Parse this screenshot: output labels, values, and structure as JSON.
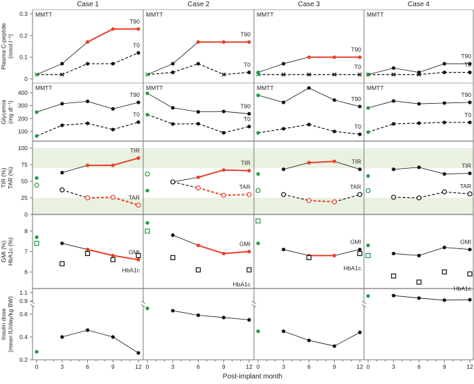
{
  "chart_data": {
    "type": "line",
    "xlabel": "Post-implant month",
    "xticks": [
      0,
      3,
      6,
      9,
      12
    ],
    "colors": {
      "baseline": "#1e9a3c",
      "highlight": "#e8412a",
      "default": "#111111",
      "band": "#e9f1e0"
    },
    "rows": [
      {
        "key": "cpeptide",
        "ylabel": [
          "Plasma C-peptide",
          "(nmol l⁻¹)"
        ],
        "yticks": [
          0,
          0.1,
          0.2,
          0.3
        ],
        "ytick_labels": [
          "0",
          "0.1",
          "0.2",
          "0.3"
        ],
        "panel_label": "MMTT",
        "connect_baseline": true
      },
      {
        "key": "glycemia",
        "ylabel": [
          "Glycemia",
          "(mg dl⁻¹)"
        ],
        "yticks": [
          100,
          200,
          300,
          400
        ],
        "ytick_labels": [
          "100",
          "200",
          "300",
          "400"
        ],
        "panel_label": "MMTT",
        "connect_baseline": true
      },
      {
        "key": "tir",
        "ylabel": [
          "TIR (%)",
          "TAR (%)"
        ],
        "yticks": [
          0,
          25,
          50,
          75,
          100
        ],
        "ytick_labels": [
          "0",
          "25",
          "50",
          "75",
          "100"
        ],
        "panel_label": "",
        "connect_baseline": false,
        "target_bands": [
          [
            70,
            100
          ],
          [
            0,
            25
          ]
        ]
      },
      {
        "key": "gmi",
        "ylabel": [
          "GMI (%)",
          "HbA1c (%)"
        ],
        "yticks": [
          6,
          7,
          8
        ],
        "ytick_labels": [
          "6",
          "7",
          "8"
        ],
        "panel_label": "",
        "connect_baseline": false
      },
      {
        "key": "insulin",
        "ylabel": [
          "Insulin dose",
          "(mean IU/day/kg BW)"
        ],
        "yticks": [
          0.2,
          0.4,
          0.6,
          0.9,
          1.1
        ],
        "ytick_labels": [
          "0.2",
          "0.4",
          "0.6",
          "0.9",
          "1.1"
        ],
        "panel_label": "",
        "connect_baseline": false,
        "axis_break": [
          0.6,
          0.9
        ]
      }
    ],
    "cases": [
      {
        "title": "Case 1",
        "rows": {
          "cpeptide": [
            {
              "name": "T90",
              "y": [
                0.02,
                0.07,
                0.17,
                0.23,
                0.23
              ],
              "markers": [
                "x",
                "dot",
                "dot",
                "dot",
                "dot"
              ],
              "dashed": false,
              "red_from": 2
            },
            {
              "name": "T0",
              "y": [
                0.02,
                0.02,
                0.07,
                0.07,
                0.12
              ],
              "markers": [
                "x",
                "x",
                "dot",
                "dot",
                "dot"
              ],
              "dashed": true,
              "red_from": null
            }
          ],
          "glycemia": [
            {
              "name": "T90",
              "y": [
                250,
                315,
                333,
                275,
                325
              ],
              "markers": [
                "dot",
                "dot",
                "dot",
                "dot",
                "dot"
              ],
              "dashed": false,
              "red_from": null
            },
            {
              "name": "T0",
              "y": [
                65,
                148,
                163,
                115,
                172
              ],
              "markers": [
                "dot",
                "dot",
                "dot",
                "dot",
                "dot"
              ],
              "dashed": true,
              "red_from": null
            }
          ],
          "tir": [
            {
              "name": "TIR",
              "y": [
                55,
                63,
                74,
                74,
                85
              ],
              "markers": [
                "dot",
                "dot",
                "dot",
                "dot",
                "dot"
              ],
              "dashed": false,
              "red_from": 2
            },
            {
              "name": "TAR",
              "y": [
                44,
                37,
                25,
                26,
                14
              ],
              "markers": [
                "open",
                "open",
                "open",
                "open",
                "open"
              ],
              "dashed": true,
              "red_from": 2
            }
          ],
          "gmi": [
            {
              "name": "GMI",
              "y": [
                7.7,
                7.4,
                7.1,
                6.8,
                6.6
              ],
              "markers": [
                "dot",
                "dot",
                "dot",
                "dot",
                "dot"
              ],
              "dashed": false,
              "red_from": 2,
              "label_pos": "above"
            },
            {
              "name": "HbA1c",
              "y": [
                7.4,
                6.4,
                6.9,
                6.6,
                6.8
              ],
              "markers": [
                "square",
                "square",
                "square",
                "square",
                "square"
              ],
              "dashed": false,
              "no_line": true,
              "red_from": null,
              "label_pos": "below"
            }
          ],
          "insulin": [
            {
              "name": "",
              "y": [
                0.27,
                0.4,
                0.46,
                0.4,
                0.26
              ],
              "markers": [
                "dot",
                "dot",
                "dot",
                "dot",
                "dot"
              ],
              "dashed": false,
              "red_from": null
            }
          ]
        }
      },
      {
        "title": "Case 2",
        "rows": {
          "cpeptide": [
            {
              "name": "T90",
              "y": [
                0.02,
                0.07,
                0.17,
                0.17,
                0.17
              ],
              "markers": [
                "x",
                "dot",
                "dot",
                "dot",
                "dot"
              ],
              "dashed": false,
              "red_from": 2
            },
            {
              "name": "T0",
              "y": [
                0.02,
                0.03,
                0.07,
                0.02,
                0.03
              ],
              "markers": [
                "x",
                "dot",
                "dot",
                "x",
                "dot"
              ],
              "dashed": true,
              "red_from": null
            }
          ],
          "glycemia": [
            {
              "name": "T90",
              "y": [
                395,
                283,
                252,
                255,
                237
              ],
              "markers": [
                "dot",
                "dot",
                "dot",
                "dot",
                "dot"
              ],
              "dashed": false,
              "red_from": null
            },
            {
              "name": "T0",
              "y": [
                230,
                158,
                160,
                90,
                138
              ],
              "markers": [
                "dot",
                "dot",
                "dot",
                "dot",
                "dot"
              ],
              "dashed": true,
              "red_from": null
            }
          ],
          "tir": [
            {
              "name": "TIR",
              "y": [
                36,
                49,
                56,
                67,
                66
              ],
              "markers": [
                "dot",
                "dot",
                "dot",
                "dot",
                "dot"
              ],
              "dashed": false,
              "red_from": 2
            },
            {
              "name": "TAR",
              "y": [
                61,
                49,
                40,
                29,
                30
              ],
              "markers": [
                "open",
                "open",
                "open",
                "open",
                "open"
              ],
              "dashed": true,
              "red_from": 2
            }
          ],
          "gmi": [
            {
              "name": "GMI",
              "y": [
                8.4,
                7.8,
                7.3,
                6.9,
                7.0
              ],
              "markers": [
                "dot",
                "dot",
                "dot",
                "dot",
                "dot"
              ],
              "dashed": false,
              "red_from": 2,
              "label_pos": "above"
            },
            {
              "name": "HbA1c",
              "y": [
                8.0,
                6.7,
                6.1,
                null,
                6.1
              ],
              "markers": [
                "square",
                "square",
                "square",
                "square",
                "square"
              ],
              "dashed": false,
              "no_line": true,
              "red_from": null,
              "label_pos": "below"
            }
          ],
          "insulin": [
            {
              "name": "",
              "y": [
                0.65,
                0.63,
                0.59,
                0.57,
                0.55
              ],
              "markers": [
                "dot",
                "dot",
                "dot",
                "dot",
                "dot"
              ],
              "dashed": false,
              "red_from": null
            }
          ]
        }
      },
      {
        "title": "Case 3",
        "rows": {
          "cpeptide": [
            {
              "name": "T90",
              "y": [
                0.03,
                0.07,
                0.1,
                0.1,
                0.1
              ],
              "markers": [
                "dot",
                "dot",
                "dot",
                "dot",
                "dot"
              ],
              "dashed": false,
              "red_from": 2
            },
            {
              "name": "T0",
              "y": [
                0.02,
                0.02,
                0.02,
                0.02,
                0.02
              ],
              "markers": [
                "x",
                "x",
                "x",
                "x",
                "x"
              ],
              "dashed": true,
              "red_from": null
            }
          ],
          "glycemia": [
            {
              "name": "T90",
              "y": [
                380,
                325,
                437,
                343,
                293
              ],
              "markers": [
                "dot",
                "dot",
                "dot",
                "dot",
                "dot"
              ],
              "dashed": false,
              "red_from": null
            },
            {
              "name": "T0",
              "y": [
                89,
                121,
                154,
                100,
                78
              ],
              "markers": [
                "dot",
                "dot",
                "dot",
                "dot",
                "dot"
              ],
              "dashed": true,
              "red_from": null
            }
          ],
          "tir": [
            {
              "name": "TIR",
              "y": [
                61,
                68,
                78,
                80,
                68
              ],
              "markers": [
                "dot",
                "dot",
                "dot",
                "dot",
                "dot"
              ],
              "dashed": false,
              "red_from": 2,
              "red_to": 3
            },
            {
              "name": "TAR",
              "y": [
                36,
                30,
                21,
                19,
                30
              ],
              "markers": [
                "open",
                "open",
                "open",
                "open",
                "open"
              ],
              "dashed": true,
              "red_from": 2,
              "red_to": 3
            }
          ],
          "gmi": [
            {
              "name": "GMI",
              "y": [
                7.4,
                7.1,
                6.8,
                6.8,
                7.1
              ],
              "markers": [
                "dot",
                "dot",
                "dot",
                "dot",
                "dot"
              ],
              "dashed": false,
              "red_from": 2,
              "red_to": 3,
              "label_pos": "above"
            },
            {
              "name": "HbA1c",
              "y": [
                8.5,
                null,
                6.7,
                null,
                6.9
              ],
              "markers": [
                "square",
                "square",
                "square",
                "square",
                "square"
              ],
              "dashed": false,
              "no_line": true,
              "red_from": null,
              "label_pos": "below"
            }
          ],
          "insulin": [
            {
              "name": "",
              "y": [
                0.45,
                0.45,
                0.37,
                0.32,
                0.44
              ],
              "markers": [
                "dot",
                "dot",
                "dot",
                "dot",
                "dot"
              ],
              "dashed": false,
              "red_from": null
            }
          ]
        }
      },
      {
        "title": "Case 4",
        "rows": {
          "cpeptide": [
            {
              "name": "T90",
              "y": [
                0.02,
                0.05,
                0.03,
                0.07,
                0.07
              ],
              "markers": [
                "dot",
                "dot",
                "dot",
                "dot",
                "dot"
              ],
              "dashed": false,
              "red_from": null
            },
            {
              "name": "T0",
              "y": [
                0.02,
                0.02,
                0.02,
                0.03,
                0.03
              ],
              "markers": [
                "x",
                "x",
                "x",
                "dot",
                "dot"
              ],
              "dashed": true,
              "red_from": null
            }
          ],
          "glycemia": [
            {
              "name": "T90",
              "y": [
                282,
                336,
                314,
                320,
                325
              ],
              "markers": [
                "dot",
                "dot",
                "dot",
                "dot",
                "dot"
              ],
              "dashed": false,
              "red_from": null
            },
            {
              "name": "T0",
              "y": [
                95,
                159,
                164,
                170,
                170
              ],
              "markers": [
                "dot",
                "dot",
                "dot",
                "dot",
                "dot"
              ],
              "dashed": true,
              "red_from": null
            }
          ],
          "tir": [
            {
              "name": "TIR",
              "y": [
                58,
                68,
                71,
                61,
                62
              ],
              "markers": [
                "dot",
                "dot",
                "dot",
                "dot",
                "dot"
              ],
              "dashed": false,
              "red_from": null
            },
            {
              "name": "TAR",
              "y": [
                36,
                26,
                25,
                34,
                31
              ],
              "markers": [
                "open",
                "open",
                "open",
                "open",
                "open"
              ],
              "dashed": true,
              "red_from": null
            }
          ],
          "gmi": [
            {
              "name": "GMI",
              "y": [
                7.3,
                6.9,
                6.8,
                7.2,
                7.1
              ],
              "markers": [
                "dot",
                "dot",
                "dot",
                "dot",
                "dot"
              ],
              "dashed": false,
              "red_from": null,
              "label_pos": "above"
            },
            {
              "name": "HbA1c",
              "y": [
                6.8,
                5.8,
                5.5,
                6.0,
                5.9
              ],
              "markers": [
                "square",
                "square",
                "square",
                "square",
                "square"
              ],
              "dashed": false,
              "no_line": true,
              "red_from": null,
              "label_pos": "below"
            }
          ],
          "insulin": [
            {
              "name": "",
              "y": [
                1.02,
                1.03,
                0.97,
                0.92,
                0.93
              ],
              "markers": [
                "dot",
                "dot",
                "dot",
                "dot",
                "dot"
              ],
              "dashed": false,
              "red_from": null
            }
          ]
        }
      }
    ]
  }
}
